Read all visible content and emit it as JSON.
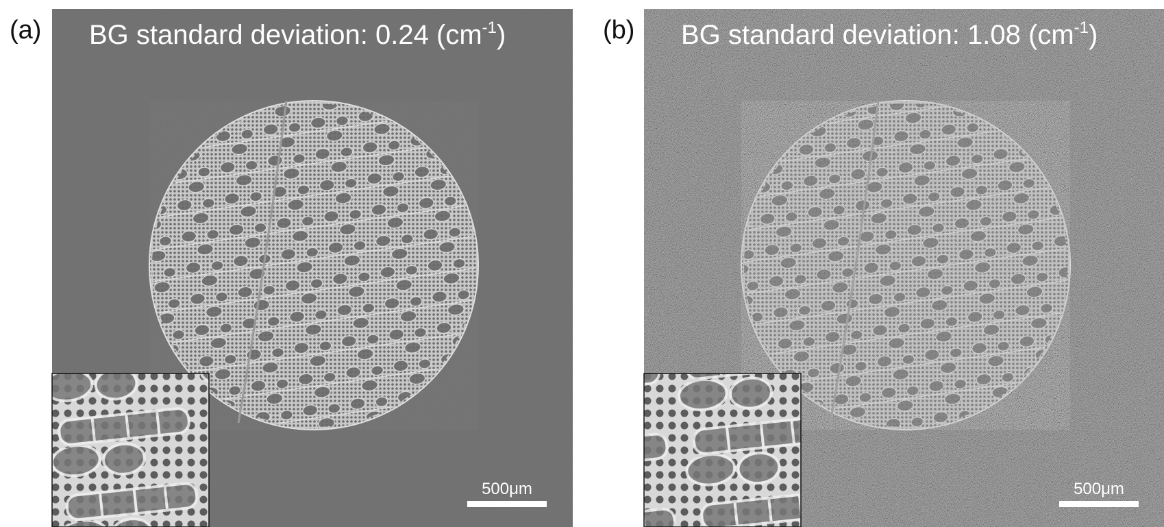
{
  "panels": [
    {
      "label": "(a)",
      "title": {
        "text": "BG standard deviation: 0.24 (cm",
        "superscript": "-1",
        "close": ")"
      },
      "scale_bar": "500μm"
    },
    {
      "label": "(b)",
      "title": {
        "text": "BG standard deviation: 1.08 (cm",
        "superscript": "-1",
        "close": ")"
      },
      "scale_bar": "500μm"
    }
  ]
}
